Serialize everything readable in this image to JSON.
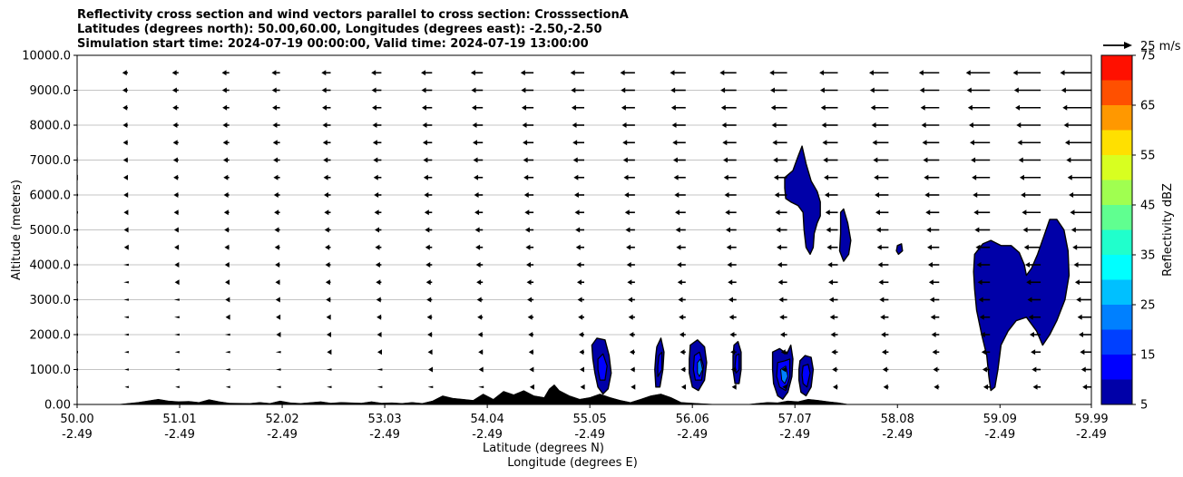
{
  "chart_data": {
    "type": "contourf",
    "title": [
      "Reflectivity cross section and wind vectors parallel to cross section: CrosssectionA",
      "Latitudes (degrees north): 50.00,60.00, Longitudes (degrees east): -2.50,-2.50",
      "Simulation start time: 2024-07-19 00:00:00, Valid time: 2024-07-19 13:00:00"
    ],
    "xlabel": "Latitude (degrees N)",
    "xlabel2": "Longitude (degrees E)",
    "ylabel": "Altitude (meters)",
    "xlim": [
      50.0,
      59.99
    ],
    "ylim": [
      0,
      10000
    ],
    "x_ticks": [
      {
        "lat": "50.00",
        "lon": "-2.49",
        "value": 50.0
      },
      {
        "lat": "51.01",
        "lon": "-2.49",
        "value": 51.01
      },
      {
        "lat": "52.02",
        "lon": "-2.49",
        "value": 52.02
      },
      {
        "lat": "53.03",
        "lon": "-2.49",
        "value": 53.03
      },
      {
        "lat": "54.04",
        "lon": "-2.49",
        "value": 54.04
      },
      {
        "lat": "55.05",
        "lon": "-2.49",
        "value": 55.05
      },
      {
        "lat": "56.06",
        "lon": "-2.49",
        "value": 56.06
      },
      {
        "lat": "57.07",
        "lon": "-2.49",
        "value": 57.07
      },
      {
        "lat": "58.08",
        "lon": "-2.49",
        "value": 58.08
      },
      {
        "lat": "59.09",
        "lon": "-2.49",
        "value": 59.09
      },
      {
        "lat": "59.99",
        "lon": "-2.49",
        "value": 59.99
      }
    ],
    "y_ticks": [
      {
        "label": "0.00",
        "value": 0
      },
      {
        "label": "1000.0",
        "value": 1000
      },
      {
        "label": "2000.0",
        "value": 2000
      },
      {
        "label": "3000.0",
        "value": 3000
      },
      {
        "label": "4000.0",
        "value": 4000
      },
      {
        "label": "5000.0",
        "value": 5000
      },
      {
        "label": "6000.0",
        "value": 6000
      },
      {
        "label": "7000.0",
        "value": 7000
      },
      {
        "label": "8000.0",
        "value": 8000
      },
      {
        "label": "9000.0",
        "value": 9000
      },
      {
        "label": "10000.0",
        "value": 10000
      }
    ],
    "grid": "horizontal",
    "colorbar": {
      "label": "Reflectivity dBZ",
      "range": [
        5,
        75
      ],
      "levels": [
        5,
        10,
        15,
        20,
        25,
        30,
        35,
        40,
        45,
        50,
        55,
        60,
        65,
        70,
        75
      ],
      "colors": [
        "#0000a8",
        "#0000ff",
        "#0040ff",
        "#0080ff",
        "#00c0ff",
        "#00ffff",
        "#20ffcc",
        "#60ff90",
        "#a0ff50",
        "#d8ff20",
        "#ffe000",
        "#ff9800",
        "#ff5000",
        "#ff1000",
        "#a80000"
      ],
      "tick_labels": [
        {
          "label": "5",
          "value": 5
        },
        {
          "label": "15",
          "value": 15
        },
        {
          "label": "25",
          "value": 25
        },
        {
          "label": "35",
          "value": 35
        },
        {
          "label": "45",
          "value": 45
        },
        {
          "label": "55",
          "value": 55
        },
        {
          "label": "65",
          "value": 65
        },
        {
          "label": "75",
          "value": 75
        }
      ]
    },
    "quiver_key": {
      "label": "25 m/s",
      "value": 25
    },
    "cells": [
      {
        "name": "cell-55.2",
        "outline": [
          [
            55.07,
            1700
          ],
          [
            55.12,
            1900
          ],
          [
            55.2,
            1850
          ],
          [
            55.24,
            1400
          ],
          [
            55.26,
            900
          ],
          [
            55.23,
            450
          ],
          [
            55.18,
            300
          ],
          [
            55.13,
            500
          ],
          [
            55.1,
            900
          ],
          [
            55.08,
            1300
          ]
        ],
        "core": [
          [
            55.13,
            1300
          ],
          [
            55.18,
            1450
          ],
          [
            55.22,
            1100
          ],
          [
            55.2,
            700
          ],
          [
            55.15,
            700
          ],
          [
            55.13,
            1000
          ]
        ]
      },
      {
        "name": "cell-55.7",
        "outline": [
          [
            55.71,
            1650
          ],
          [
            55.75,
            1900
          ],
          [
            55.78,
            1500
          ],
          [
            55.77,
            1000
          ],
          [
            55.74,
            500
          ],
          [
            55.7,
            500
          ],
          [
            55.69,
            1000
          ],
          [
            55.7,
            1400
          ]
        ],
        "core": [
          [
            55.73,
            1400
          ],
          [
            55.76,
            1500
          ],
          [
            55.76,
            1000
          ],
          [
            55.72,
            800
          ],
          [
            55.72,
            1100
          ]
        ]
      },
      {
        "name": "cell-56.1",
        "outline": [
          [
            56.04,
            1700
          ],
          [
            56.11,
            1850
          ],
          [
            56.18,
            1650
          ],
          [
            56.2,
            1200
          ],
          [
            56.18,
            700
          ],
          [
            56.12,
            400
          ],
          [
            56.06,
            500
          ],
          [
            56.03,
            900
          ],
          [
            56.03,
            1300
          ]
        ],
        "core": [
          [
            56.08,
            1400
          ],
          [
            56.13,
            1500
          ],
          [
            56.17,
            1100
          ],
          [
            56.15,
            700
          ],
          [
            56.09,
            700
          ],
          [
            56.07,
            1000
          ]
        ],
        "inner": [
          [
            56.11,
            1200
          ],
          [
            56.14,
            1300
          ],
          [
            56.16,
            1000
          ],
          [
            56.13,
            800
          ],
          [
            56.11,
            900
          ]
        ]
      },
      {
        "name": "cell-56.5",
        "outline": [
          [
            56.47,
            1700
          ],
          [
            56.51,
            1800
          ],
          [
            56.54,
            1500
          ],
          [
            56.54,
            1000
          ],
          [
            56.52,
            600
          ],
          [
            56.48,
            600
          ],
          [
            56.46,
            1000
          ],
          [
            56.46,
            1400
          ]
        ],
        "core": [
          [
            56.49,
            1400
          ],
          [
            56.52,
            1450
          ],
          [
            56.52,
            1000
          ],
          [
            56.49,
            900
          ],
          [
            56.48,
            1100
          ]
        ]
      },
      {
        "name": "cell-56.9",
        "outline": [
          [
            56.85,
            1500
          ],
          [
            56.92,
            1600
          ],
          [
            56.99,
            1450
          ],
          [
            57.03,
            1700
          ],
          [
            57.05,
            1300
          ],
          [
            57.04,
            800
          ],
          [
            57.0,
            350
          ],
          [
            56.95,
            150
          ],
          [
            56.9,
            250
          ],
          [
            56.86,
            600
          ],
          [
            56.85,
            1000
          ]
        ],
        "core": [
          [
            56.9,
            1200
          ],
          [
            56.97,
            1250
          ],
          [
            57.02,
            1300
          ],
          [
            57.02,
            800
          ],
          [
            56.98,
            400
          ],
          [
            56.92,
            500
          ],
          [
            56.89,
            800
          ]
        ],
        "inner": [
          [
            56.93,
            1000
          ],
          [
            56.98,
            1100
          ],
          [
            57.0,
            800
          ],
          [
            56.97,
            600
          ],
          [
            56.94,
            700
          ]
        ]
      },
      {
        "name": "cell-57.2",
        "outline": [
          [
            57.12,
            1250
          ],
          [
            57.17,
            1400
          ],
          [
            57.23,
            1350
          ],
          [
            57.25,
            1000
          ],
          [
            57.23,
            500
          ],
          [
            57.18,
            250
          ],
          [
            57.13,
            350
          ],
          [
            57.11,
            700
          ],
          [
            57.11,
            1000
          ]
        ],
        "core": [
          [
            57.15,
            1100
          ],
          [
            57.2,
            1150
          ],
          [
            57.22,
            900
          ],
          [
            57.19,
            500
          ],
          [
            57.15,
            600
          ],
          [
            57.14,
            850
          ]
        ]
      },
      {
        "name": "cell-upper-57.1",
        "outline": [
          [
            56.97,
            6500
          ],
          [
            57.05,
            6700
          ],
          [
            57.1,
            7100
          ],
          [
            57.14,
            7400
          ],
          [
            57.18,
            6900
          ],
          [
            57.23,
            6400
          ],
          [
            57.29,
            6100
          ],
          [
            57.32,
            5800
          ],
          [
            57.32,
            5400
          ],
          [
            57.29,
            5200
          ],
          [
            57.26,
            4900
          ],
          [
            57.25,
            4500
          ],
          [
            57.22,
            4300
          ],
          [
            57.18,
            4500
          ],
          [
            57.16,
            5000
          ],
          [
            57.15,
            5500
          ],
          [
            57.1,
            5700
          ],
          [
            57.03,
            5800
          ],
          [
            56.98,
            5900
          ],
          [
            56.97,
            6200
          ]
        ]
      },
      {
        "name": "cell-upper-57.7",
        "outline": [
          [
            57.52,
            5500
          ],
          [
            57.55,
            5600
          ],
          [
            57.59,
            5200
          ],
          [
            57.62,
            4700
          ],
          [
            57.6,
            4300
          ],
          [
            57.55,
            4100
          ],
          [
            57.51,
            4400
          ],
          [
            57.52,
            4900
          ]
        ]
      },
      {
        "name": "cell-upper-58.1",
        "outline": [
          [
            58.08,
            4550
          ],
          [
            58.12,
            4600
          ],
          [
            58.13,
            4400
          ],
          [
            58.09,
            4300
          ],
          [
            58.07,
            4400
          ]
        ]
      },
      {
        "name": "cell-upper-59.1",
        "outline": [
          [
            58.84,
            4300
          ],
          [
            58.92,
            4600
          ],
          [
            59.0,
            4700
          ],
          [
            59.1,
            4550
          ],
          [
            59.2,
            4550
          ],
          [
            59.28,
            4350
          ],
          [
            59.33,
            4000
          ],
          [
            59.35,
            3700
          ],
          [
            59.4,
            3900
          ],
          [
            59.46,
            4300
          ],
          [
            59.52,
            4800
          ],
          [
            59.58,
            5300
          ],
          [
            59.65,
            5300
          ],
          [
            59.72,
            5000
          ],
          [
            59.76,
            4400
          ],
          [
            59.77,
            3700
          ],
          [
            59.73,
            3000
          ],
          [
            59.65,
            2400
          ],
          [
            59.58,
            2000
          ],
          [
            59.51,
            1700
          ],
          [
            59.45,
            2100
          ],
          [
            59.35,
            2500
          ],
          [
            59.25,
            2400
          ],
          [
            59.17,
            2100
          ],
          [
            59.1,
            1700
          ],
          [
            59.07,
            1000
          ],
          [
            59.04,
            500
          ],
          [
            59.0,
            400
          ],
          [
            58.98,
            800
          ],
          [
            58.96,
            1400
          ],
          [
            58.91,
            2000
          ],
          [
            58.86,
            2700
          ],
          [
            58.84,
            3300
          ],
          [
            58.83,
            3800
          ]
        ]
      }
    ],
    "terrain": [
      [
        50.0,
        0
      ],
      [
        50.4,
        0
      ],
      [
        50.6,
        60
      ],
      [
        50.8,
        150
      ],
      [
        50.9,
        100
      ],
      [
        51.0,
        80
      ],
      [
        51.1,
        90
      ],
      [
        51.2,
        60
      ],
      [
        51.3,
        140
      ],
      [
        51.4,
        80
      ],
      [
        51.5,
        40
      ],
      [
        51.7,
        30
      ],
      [
        51.8,
        60
      ],
      [
        51.9,
        30
      ],
      [
        52.0,
        100
      ],
      [
        52.1,
        50
      ],
      [
        52.2,
        30
      ],
      [
        52.4,
        80
      ],
      [
        52.5,
        40
      ],
      [
        52.6,
        60
      ],
      [
        52.8,
        40
      ],
      [
        52.9,
        80
      ],
      [
        53.0,
        40
      ],
      [
        53.1,
        50
      ],
      [
        53.2,
        30
      ],
      [
        53.3,
        60
      ],
      [
        53.4,
        30
      ],
      [
        53.5,
        100
      ],
      [
        53.6,
        250
      ],
      [
        53.7,
        180
      ],
      [
        53.8,
        150
      ],
      [
        53.9,
        120
      ],
      [
        54.0,
        300
      ],
      [
        54.1,
        150
      ],
      [
        54.2,
        380
      ],
      [
        54.3,
        280
      ],
      [
        54.4,
        400
      ],
      [
        54.5,
        250
      ],
      [
        54.6,
        200
      ],
      [
        54.65,
        450
      ],
      [
        54.7,
        570
      ],
      [
        54.75,
        400
      ],
      [
        54.85,
        250
      ],
      [
        54.95,
        150
      ],
      [
        55.05,
        200
      ],
      [
        55.15,
        300
      ],
      [
        55.25,
        200
      ],
      [
        55.35,
        120
      ],
      [
        55.45,
        60
      ],
      [
        55.55,
        150
      ],
      [
        55.65,
        250
      ],
      [
        55.75,
        300
      ],
      [
        55.85,
        200
      ],
      [
        55.95,
        60
      ],
      [
        56.1,
        30
      ],
      [
        56.3,
        0
      ],
      [
        56.5,
        0
      ],
      [
        56.6,
        0
      ],
      [
        56.7,
        30
      ],
      [
        56.8,
        60
      ],
      [
        56.9,
        50
      ],
      [
        57.0,
        100
      ],
      [
        57.1,
        80
      ],
      [
        57.2,
        150
      ],
      [
        57.3,
        120
      ],
      [
        57.4,
        80
      ],
      [
        57.5,
        50
      ],
      [
        57.6,
        0
      ],
      [
        59.99,
        0
      ]
    ]
  }
}
